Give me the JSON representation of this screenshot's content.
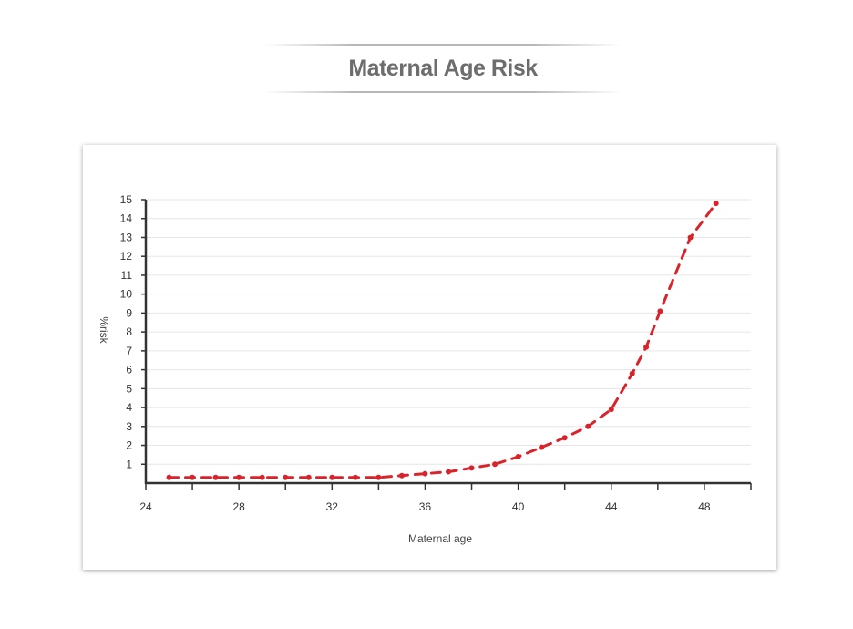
{
  "header": {
    "title": "Maternal Age Risk"
  },
  "colors": {
    "series": "#d9232a",
    "axis": "#333333",
    "grid": "#e6e6e6",
    "title": "#6d6d6d"
  },
  "chart_data": {
    "type": "line",
    "title": "",
    "xlabel": "Maternal age",
    "ylabel": "%risk",
    "xlim": [
      24,
      50
    ],
    "ylim": [
      0,
      15
    ],
    "x_ticks": [
      24,
      28,
      32,
      36,
      40,
      44,
      48
    ],
    "y_ticks": [
      1,
      2,
      3,
      4,
      5,
      6,
      7,
      8,
      9,
      10,
      11,
      12,
      13,
      14,
      15
    ],
    "grid": "horizontal",
    "legend": "none",
    "series": [
      {
        "line_style": "dashed",
        "x": [
          25,
          26,
          27,
          28,
          29,
          30,
          31,
          32,
          33,
          34,
          35,
          36,
          37,
          38,
          39,
          40,
          41,
          42,
          43,
          44,
          44.9,
          45.5,
          46.1,
          47.4,
          48.5
        ],
        "y": [
          0.3,
          0.3,
          0.3,
          0.3,
          0.3,
          0.3,
          0.3,
          0.3,
          0.3,
          0.3,
          0.4,
          0.5,
          0.6,
          0.8,
          1.0,
          1.4,
          1.9,
          2.4,
          3.0,
          3.9,
          5.8,
          7.2,
          9.1,
          13.0,
          14.8
        ]
      }
    ]
  }
}
